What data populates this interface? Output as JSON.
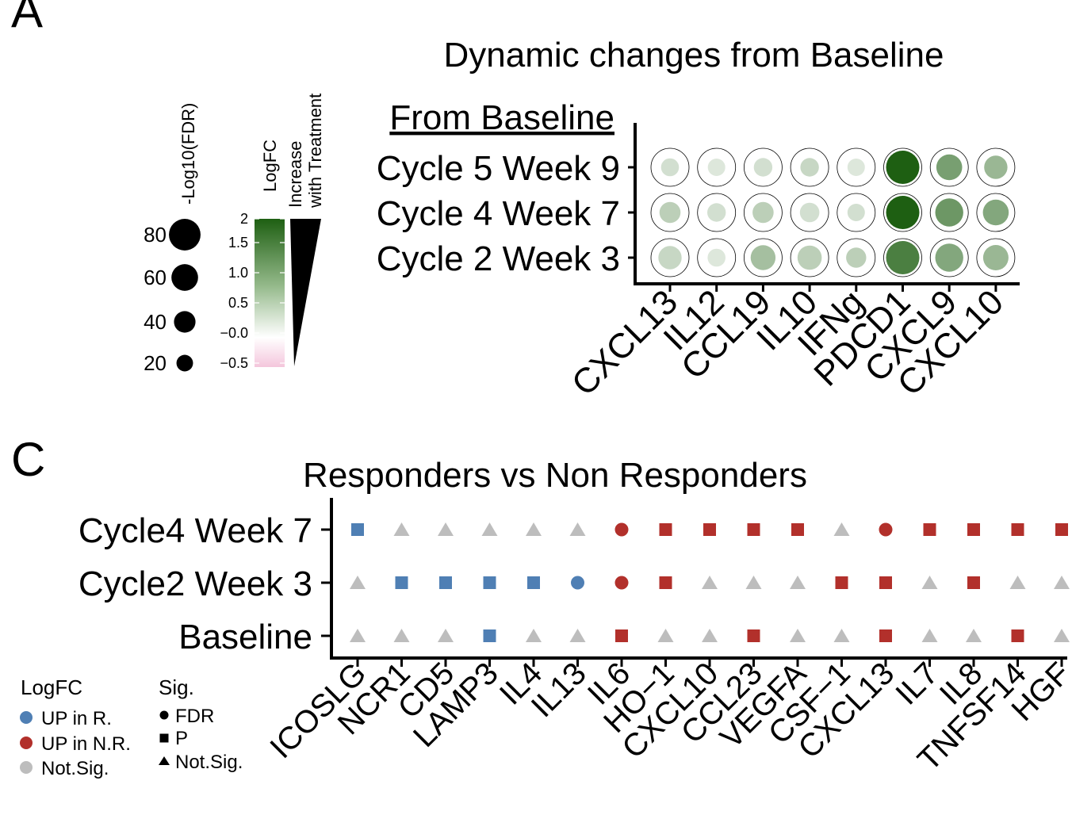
{
  "panel_labels": {
    "a": "A",
    "c": "C"
  },
  "colors": {
    "green_high": "#1e5f12",
    "green_low": "#ffffff",
    "pink_low": "#f4c6dc",
    "blue": "#4f7fb4",
    "red": "#b2302b",
    "grey": "#bdbdbd"
  },
  "chart_data": [
    {
      "id": "panel-a",
      "type": "dotplot",
      "title": "Dynamic changes from Baseline",
      "y_header": "From Baseline",
      "categories": [
        "CXCL13",
        "IL12",
        "CCL19",
        "IL10",
        "IFNg",
        "PDCD1",
        "CXCL9",
        "CXCL10"
      ],
      "rows": [
        "Cycle 5 Week 9",
        "Cycle 4 Week 7",
        "Cycle 2 Week 3"
      ],
      "size_legend": {
        "title": "-Log10(FDR)",
        "values": [
          80,
          60,
          40,
          20
        ]
      },
      "color_legend": {
        "title": "LogFC",
        "ticks": [
          "2",
          "1.5",
          "1.0",
          "0.5",
          "−0.0",
          "−0.5"
        ],
        "range": [
          -0.5,
          2
        ]
      },
      "wedge_legend": {
        "label_line1": "Increase",
        "label_line2": "with Treatment"
      },
      "size_range": [
        20,
        80
      ],
      "logfc": [
        [
          0.4,
          0.3,
          0.4,
          0.5,
          0.3,
          2.0,
          1.2,
          0.9
        ],
        [
          0.6,
          0.4,
          0.6,
          0.4,
          0.4,
          2.0,
          1.3,
          1.1
        ],
        [
          0.5,
          0.3,
          0.8,
          0.6,
          0.6,
          1.6,
          1.1,
          0.9
        ]
      ],
      "neglog10fdr": [
        [
          22,
          18,
          24,
          24,
          14,
          80,
          52,
          42
        ],
        [
          34,
          24,
          34,
          28,
          20,
          82,
          60,
          52
        ],
        [
          42,
          22,
          48,
          46,
          30,
          86,
          60,
          50
        ]
      ]
    },
    {
      "id": "panel-c",
      "type": "scatter",
      "title": "Responders vs Non Responders",
      "categories": [
        "ICOSLG",
        "NCR1",
        "CD5",
        "LAMP3",
        "IL4",
        "IL13",
        "IL6",
        "HO−1",
        "CXCL10",
        "CCL23",
        "VEGFA",
        "CSF−1",
        "CXCL13",
        "IL7",
        "IL8",
        "TNFSF14",
        "HGF"
      ],
      "rows": [
        "Cycle4 Week 7",
        "Cycle2 Week 3",
        "Baseline"
      ],
      "logfc_legend": {
        "title": "LogFC",
        "items": [
          "UP in R.",
          "UP in N.R.",
          "Not.Sig."
        ]
      },
      "sig_legend": {
        "title": "Sig.",
        "items": [
          "FDR",
          "P",
          "Not.Sig."
        ]
      },
      "direction": [
        [
          "R",
          "N",
          "N",
          "N",
          "N",
          "N",
          "NR",
          "NR",
          "NR",
          "NR",
          "NR",
          "N",
          "NR",
          "NR",
          "NR",
          "NR",
          "NR"
        ],
        [
          "N",
          "R",
          "R",
          "R",
          "R",
          "R",
          "NR",
          "NR",
          "N",
          "N",
          "N",
          "NR",
          "NR",
          "N",
          "NR",
          "N",
          "N"
        ],
        [
          "N",
          "N",
          "N",
          "R",
          "N",
          "N",
          "NR",
          "N",
          "N",
          "NR",
          "N",
          "N",
          "NR",
          "N",
          "N",
          "NR",
          "N"
        ]
      ],
      "sig": [
        [
          "P",
          "NS",
          "NS",
          "NS",
          "NS",
          "NS",
          "FDR",
          "P",
          "P",
          "P",
          "P",
          "NS",
          "FDR",
          "P",
          "P",
          "P",
          "P"
        ],
        [
          "NS",
          "P",
          "P",
          "P",
          "P",
          "FDR",
          "FDR",
          "P",
          "NS",
          "NS",
          "NS",
          "P",
          "P",
          "NS",
          "P",
          "NS",
          "NS"
        ],
        [
          "NS",
          "NS",
          "NS",
          "P",
          "NS",
          "NS",
          "P",
          "NS",
          "NS",
          "P",
          "NS",
          "NS",
          "P",
          "NS",
          "NS",
          "P",
          "NS"
        ]
      ]
    }
  ]
}
